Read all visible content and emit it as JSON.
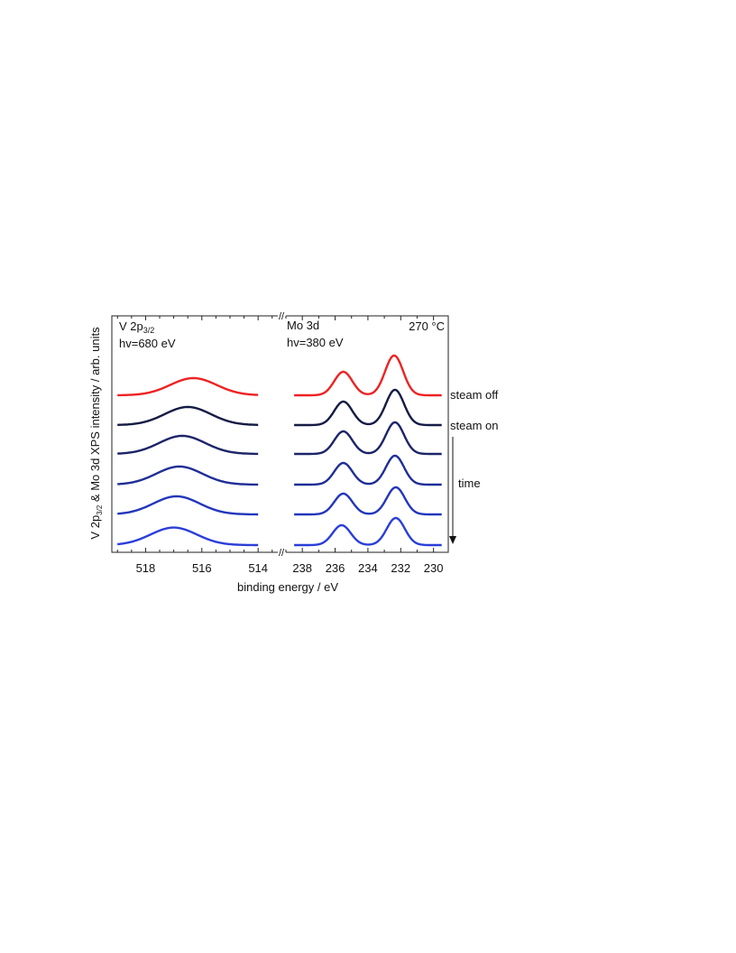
{
  "chart_data": {
    "type": "line",
    "ylabel_parts": {
      "p1": "V 2p",
      "sub1": "3/2",
      "p2": " & Mo 3d XPS intensity / arb. units"
    },
    "xlabel": "binding energy / eV",
    "temperature": "270 °C",
    "panels": [
      {
        "id": "V",
        "label_main": "V 2p",
        "label_sub": "3/2",
        "photon_energy": "hv=680 eV",
        "x_range": [
          519.2,
          513.3
        ],
        "ticks": [
          518,
          516,
          514
        ],
        "tick_labels": [
          "518",
          "516",
          "514"
        ],
        "curve_x_range": [
          519.0,
          514.0
        ]
      },
      {
        "id": "Mo",
        "label_main": "Mo 3d",
        "photon_energy": "hv=380 eV",
        "x_range": [
          239.0,
          229.1
        ],
        "ticks": [
          238,
          236,
          234,
          232,
          230
        ],
        "tick_labels": [
          "238",
          "236",
          "234",
          "232",
          "230"
        ],
        "curve_x_range": [
          238.5,
          229.5
        ]
      }
    ],
    "series": [
      {
        "label": "steam off",
        "color": "#ee2222",
        "v_peak": {
          "center": 516.3,
          "height": 0.95
        },
        "mo_peaks": [
          {
            "center": 235.5,
            "height": 1.3
          },
          {
            "center": 232.4,
            "height": 2.2
          }
        ]
      },
      {
        "label": "steam on",
        "color": "#141b44",
        "v_peak": {
          "center": 516.5,
          "height": 1.0
        },
        "mo_peaks": [
          {
            "center": 235.5,
            "height": 1.3
          },
          {
            "center": 232.35,
            "height": 1.95
          }
        ]
      },
      {
        "label": "",
        "color": "#1c2468",
        "v_peak": {
          "center": 516.7,
          "height": 1.0
        },
        "mo_peaks": [
          {
            "center": 235.5,
            "height": 1.25
          },
          {
            "center": 232.35,
            "height": 1.75
          }
        ]
      },
      {
        "label": "",
        "color": "#1f2e96",
        "v_peak": {
          "center": 516.8,
          "height": 1.0
        },
        "mo_peaks": [
          {
            "center": 235.5,
            "height": 1.2
          },
          {
            "center": 232.35,
            "height": 1.6
          }
        ]
      },
      {
        "label": "",
        "color": "#2236bb",
        "v_peak": {
          "center": 516.9,
          "height": 1.0
        },
        "mo_peaks": [
          {
            "center": 235.5,
            "height": 1.15
          },
          {
            "center": 232.3,
            "height": 1.5
          }
        ]
      },
      {
        "label": "",
        "color": "#2a3ed8",
        "v_peak": {
          "center": 517.0,
          "height": 0.97
        },
        "mo_peaks": [
          {
            "center": 235.6,
            "height": 1.1
          },
          {
            "center": 232.3,
            "height": 1.5
          }
        ]
      }
    ],
    "arrow_label": "time",
    "axis_break_mark": "//"
  }
}
